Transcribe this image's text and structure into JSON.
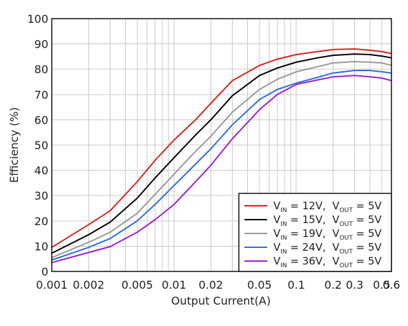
{
  "chart_data": {
    "type": "line",
    "xlabel": "Output Current(A)",
    "ylabel": "Efficiency (%)",
    "xscale": "log",
    "xlim": [
      0.001,
      0.6
    ],
    "ylim": [
      0,
      100
    ],
    "grid": true,
    "legend_position": "bottom-right",
    "x_ticks": [
      0.001,
      0.002,
      0.005,
      0.01,
      0.02,
      0.05,
      0.1,
      0.2,
      0.3,
      0.5,
      0.6
    ],
    "x_tick_labels": [
      "0.001",
      "0.002",
      "0.005",
      "0.01",
      "0.02",
      "0.05",
      "0.1",
      "0.2",
      "0.3",
      "0.5",
      "0.6"
    ],
    "y_ticks": [
      0,
      10,
      20,
      30,
      40,
      50,
      60,
      70,
      80,
      90,
      100
    ],
    "y_tick_labels": [
      "0",
      "10",
      "20",
      "30",
      "40",
      "50",
      "60",
      "70",
      "80",
      "90",
      "100"
    ],
    "series": [
      {
        "legend": {
          "v": "V",
          "in_sub": "IN",
          "in_text": " = 12V,  ",
          "out_sub": "OUT",
          "out_text": " = 5V"
        },
        "color": "#e02020",
        "x": [
          0.001,
          0.002,
          0.003,
          0.005,
          0.007,
          0.01,
          0.015,
          0.02,
          0.03,
          0.05,
          0.07,
          0.1,
          0.15,
          0.2,
          0.3,
          0.4,
          0.5,
          0.6
        ],
        "y": [
          9.5,
          18.5,
          24,
          35.5,
          44,
          52,
          60,
          66.5,
          75.5,
          81.5,
          84,
          85.8,
          87,
          87.8,
          88,
          87.5,
          87,
          86.2
        ]
      },
      {
        "legend": {
          "v": "V",
          "in_sub": "IN",
          "in_text": " = 15V,  ",
          "out_sub": "OUT",
          "out_text": " = 5V"
        },
        "color": "#000000",
        "x": [
          0.001,
          0.002,
          0.003,
          0.005,
          0.007,
          0.01,
          0.015,
          0.02,
          0.03,
          0.05,
          0.07,
          0.1,
          0.15,
          0.2,
          0.3,
          0.4,
          0.5,
          0.6
        ],
        "y": [
          7.2,
          14.5,
          19.5,
          29,
          37,
          45,
          54,
          60,
          69.5,
          77.5,
          80.5,
          82.8,
          84.5,
          85.5,
          86,
          85.8,
          85.2,
          84.5
        ]
      },
      {
        "legend": {
          "v": "V",
          "in_sub": "IN",
          "in_text": " = 19V,  ",
          "out_sub": "OUT",
          "out_text": " = 5V"
        },
        "color": "#9a9a9a",
        "x": [
          0.001,
          0.002,
          0.003,
          0.005,
          0.007,
          0.01,
          0.015,
          0.02,
          0.03,
          0.05,
          0.07,
          0.1,
          0.15,
          0.2,
          0.3,
          0.4,
          0.5,
          0.6
        ],
        "y": [
          5.5,
          11.5,
          15.5,
          23,
          30.5,
          38.5,
          47.5,
          53.5,
          63,
          72,
          76,
          79,
          81,
          82.5,
          83,
          82.8,
          82.5,
          81.5
        ]
      },
      {
        "legend": {
          "v": "V",
          "in_sub": "IN",
          "in_text": " = 24V,  ",
          "out_sub": "OUT",
          "out_text": " = 5V"
        },
        "color": "#2f6fd0",
        "x": [
          0.001,
          0.002,
          0.003,
          0.005,
          0.007,
          0.01,
          0.015,
          0.02,
          0.03,
          0.05,
          0.07,
          0.1,
          0.15,
          0.2,
          0.3,
          0.4,
          0.5,
          0.6
        ],
        "y": [
          4.5,
          9.5,
          13,
          20,
          26.5,
          34,
          42.5,
          48.5,
          58,
          68,
          72,
          74.5,
          76.8,
          78.5,
          79.5,
          79.5,
          79,
          78.5
        ]
      },
      {
        "legend": {
          "v": "V",
          "in_sub": "IN",
          "in_text": " = 36V,  ",
          "out_sub": "OUT",
          "out_text": " = 5V"
        },
        "color": "#9b1fd6",
        "x": [
          0.001,
          0.002,
          0.003,
          0.005,
          0.007,
          0.01,
          0.015,
          0.02,
          0.03,
          0.05,
          0.07,
          0.1,
          0.15,
          0.2,
          0.3,
          0.4,
          0.5,
          0.6
        ],
        "y": [
          3.5,
          7.5,
          9.8,
          15.5,
          20.5,
          26.5,
          35.5,
          42,
          52.5,
          64,
          70,
          74,
          75.8,
          77,
          77.5,
          77,
          76.5,
          75.5
        ]
      }
    ]
  }
}
